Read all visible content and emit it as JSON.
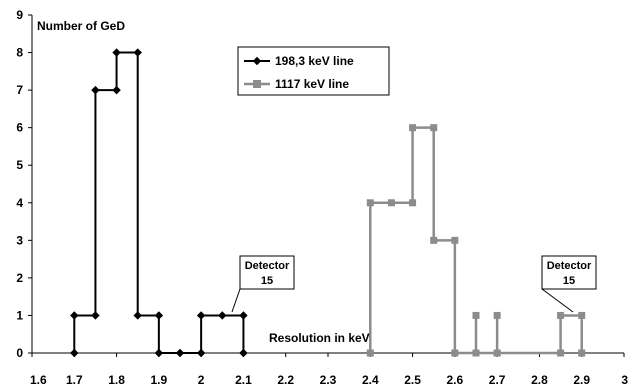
{
  "chart_data": {
    "type": "line",
    "step": true,
    "ylabel": "Number of GeD",
    "xlabel": "Resolution in keV",
    "xlim": [
      1.6,
      3.0
    ],
    "ylim": [
      0,
      9
    ],
    "xticks": [
      "1.6",
      "1.7",
      "1.8",
      "1.9",
      "2",
      "2.1",
      "2.2",
      "2.3",
      "2.4",
      "2.5",
      "2.6",
      "2.7",
      "2.8",
      "2.9",
      "3"
    ],
    "yticks": [
      "0",
      "1",
      "2",
      "3",
      "4",
      "5",
      "6",
      "7",
      "8",
      "9"
    ],
    "grid": false,
    "legend_position": "top-center",
    "series": [
      {
        "name": "198,3 keV line",
        "color": "#000000",
        "marker": "diamond",
        "points": [
          [
            1.7,
            0
          ],
          [
            1.7,
            1
          ],
          [
            1.75,
            1
          ],
          [
            1.75,
            7
          ],
          [
            1.8,
            7
          ],
          [
            1.8,
            8
          ],
          [
            1.85,
            8
          ],
          [
            1.85,
            1
          ],
          [
            1.9,
            1
          ],
          [
            1.9,
            0
          ],
          [
            1.95,
            0
          ],
          [
            2.0,
            0
          ],
          [
            2.0,
            1
          ],
          [
            2.05,
            1
          ],
          [
            2.1,
            1
          ],
          [
            2.1,
            0
          ]
        ]
      },
      {
        "name": "1117 keV line",
        "color": "#8c8c8c",
        "marker": "square",
        "points": [
          [
            2.4,
            0
          ],
          [
            2.4,
            4
          ],
          [
            2.45,
            4
          ],
          [
            2.5,
            4
          ],
          [
            2.5,
            6
          ],
          [
            2.55,
            6
          ],
          [
            2.55,
            3
          ],
          [
            2.6,
            3
          ],
          [
            2.6,
            0
          ],
          [
            2.65,
            0
          ],
          [
            2.65,
            1
          ],
          [
            2.65,
            0
          ],
          [
            2.7,
            0
          ],
          [
            2.7,
            1
          ],
          [
            2.7,
            0
          ],
          [
            2.85,
            0
          ],
          [
            2.85,
            1
          ],
          [
            2.9,
            1
          ],
          [
            2.9,
            0
          ]
        ]
      }
    ],
    "annotations": [
      {
        "line1": "Detector",
        "line2": "15",
        "target_x": 2.07,
        "target_y": 1
      },
      {
        "line1": "Detector",
        "line2": "15",
        "target_x": 2.87,
        "target_y": 1
      }
    ]
  }
}
